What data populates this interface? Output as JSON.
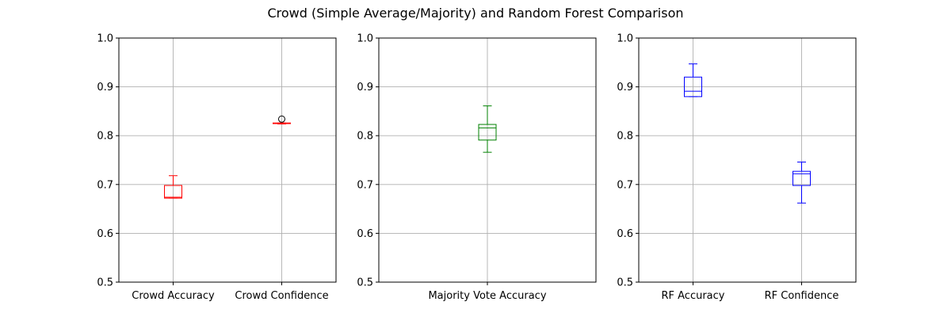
{
  "chart_data": {
    "title": "Crowd (Simple Average/Majority) and Random Forest Comparison",
    "type": "box",
    "panels": [
      {
        "ylim": [
          0.5,
          1.0
        ],
        "yticks": [
          "0.5",
          "0.6",
          "0.7",
          "0.8",
          "0.9",
          "1.0"
        ],
        "grid": true,
        "boxes": [
          {
            "label": "Crowd Accuracy",
            "color": "#ff0000",
            "whisker_low": 0.672,
            "q1": 0.672,
            "median": 0.674,
            "q3": 0.698,
            "whisker_high": 0.718,
            "fliers": []
          },
          {
            "label": "Crowd Confidence",
            "color": "#ff0000",
            "whisker_low": 0.824,
            "q1": 0.825,
            "median": 0.825,
            "q3": 0.826,
            "whisker_high": 0.826,
            "fliers": [
              0.834
            ]
          }
        ]
      },
      {
        "ylim": [
          0.5,
          1.0
        ],
        "yticks": [
          "0.5",
          "0.6",
          "0.7",
          "0.8",
          "0.9",
          "1.0"
        ],
        "grid": true,
        "boxes": [
          {
            "label": "Majority Vote Accuracy",
            "color": "#008000",
            "whisker_low": 0.766,
            "q1": 0.791,
            "median": 0.816,
            "q3": 0.823,
            "whisker_high": 0.861,
            "fliers": []
          }
        ]
      },
      {
        "ylim": [
          0.5,
          1.0
        ],
        "yticks": [
          "0.5",
          "0.6",
          "0.7",
          "0.8",
          "0.9",
          "1.0"
        ],
        "grid": true,
        "boxes": [
          {
            "label": "RF Accuracy",
            "color": "#0000ff",
            "whisker_low": 0.88,
            "q1": 0.88,
            "median": 0.891,
            "q3": 0.92,
            "whisker_high": 0.947,
            "fliers": []
          },
          {
            "label": "RF Confidence",
            "color": "#0000ff",
            "whisker_low": 0.662,
            "q1": 0.698,
            "median": 0.722,
            "q3": 0.727,
            "whisker_high": 0.746,
            "fliers": []
          }
        ]
      }
    ]
  }
}
